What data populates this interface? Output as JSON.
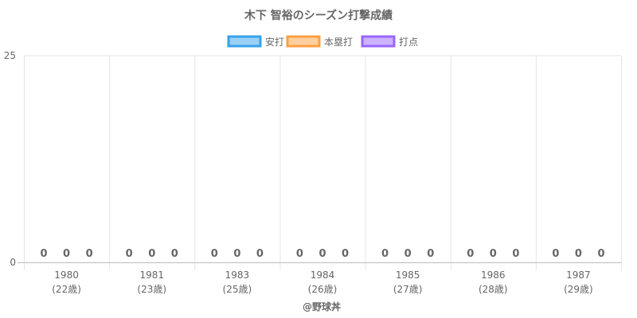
{
  "chart_data": {
    "type": "bar",
    "title": "木下 智裕のシーズン打撃成績",
    "categories": [
      "1980",
      "1981",
      "1983",
      "1984",
      "1985",
      "1986",
      "1987"
    ],
    "category_sublabels": [
      "(22歳)",
      "(23歳)",
      "(25歳)",
      "(26歳)",
      "(27歳)",
      "(28歳)",
      "(29歳)"
    ],
    "series": [
      {
        "name": "安打",
        "values": [
          0,
          0,
          0,
          0,
          0,
          0,
          0
        ],
        "color": "#36a2eb",
        "fill": "#9ad0f5"
      },
      {
        "name": "本塁打",
        "values": [
          0,
          0,
          0,
          0,
          0,
          0,
          0
        ],
        "color": "#ff9f40",
        "fill": "#ffcf9f"
      },
      {
        "name": "打点",
        "values": [
          0,
          0,
          0,
          0,
          0,
          0,
          0
        ],
        "color": "#9966ff",
        "fill": "#ccb2ff"
      }
    ],
    "ylim": [
      0,
      25
    ],
    "yticks": [
      0,
      25
    ],
    "legend_position": "top",
    "grid": true,
    "data_labels": true,
    "footer": "@野球丼"
  }
}
